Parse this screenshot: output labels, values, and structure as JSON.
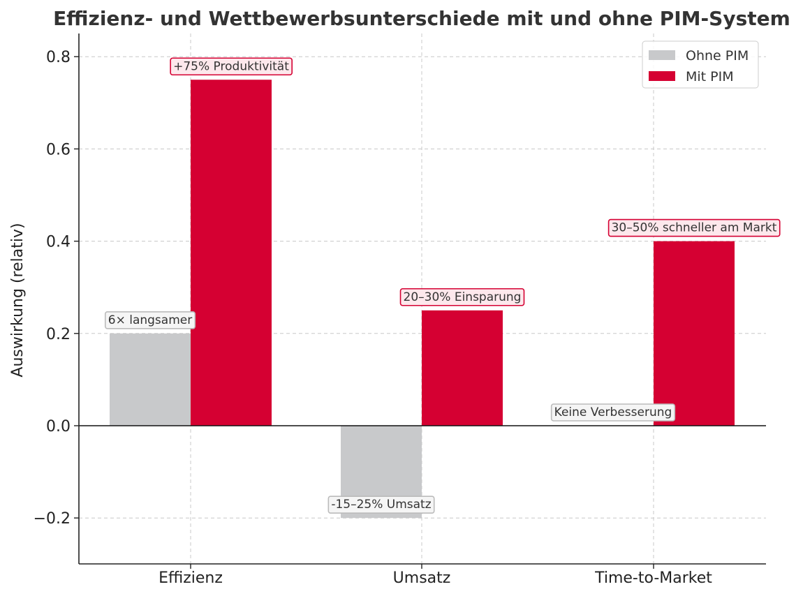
{
  "chart_data": {
    "type": "bar",
    "title": "Effizienz- und Wettbewerbsunterschiede mit und ohne PIM-System",
    "xlabel": "",
    "ylabel": "Auswirkung (relativ)",
    "categories": [
      "Effizienz",
      "Umsatz",
      "Time-to-Market"
    ],
    "series": [
      {
        "name": "Ohne PIM",
        "color": "#c8c9cb",
        "values": [
          0.2,
          -0.2,
          0
        ],
        "annotations": [
          "6× langsamer",
          "-15–25% Umsatz",
          "Keine Verbesserung"
        ]
      },
      {
        "name": "Mit PIM",
        "color": "#d50032",
        "values": [
          0.75,
          0.25,
          0.4
        ],
        "annotations": [
          "+75% Produktivität",
          "20–30% Einsparung",
          "30–50% schneller am Markt"
        ]
      }
    ],
    "ylim": [
      -0.3,
      0.85
    ],
    "yticks": [
      -0.2,
      0.0,
      0.2,
      0.4,
      0.6,
      0.8
    ],
    "ytick_labels": [
      "−0.2",
      "0.0",
      "0.2",
      "0.4",
      "0.6",
      "0.8"
    ],
    "grid": true,
    "legend_position": "top-right",
    "annotation_border_colors": {
      "Ohne PIM": "#bbbbbb",
      "Mit PIM": "#d50032"
    },
    "annotation_fill_colors": {
      "Ohne PIM": "#f5f5f5",
      "Mit PIM": "#fde8ec"
    }
  }
}
